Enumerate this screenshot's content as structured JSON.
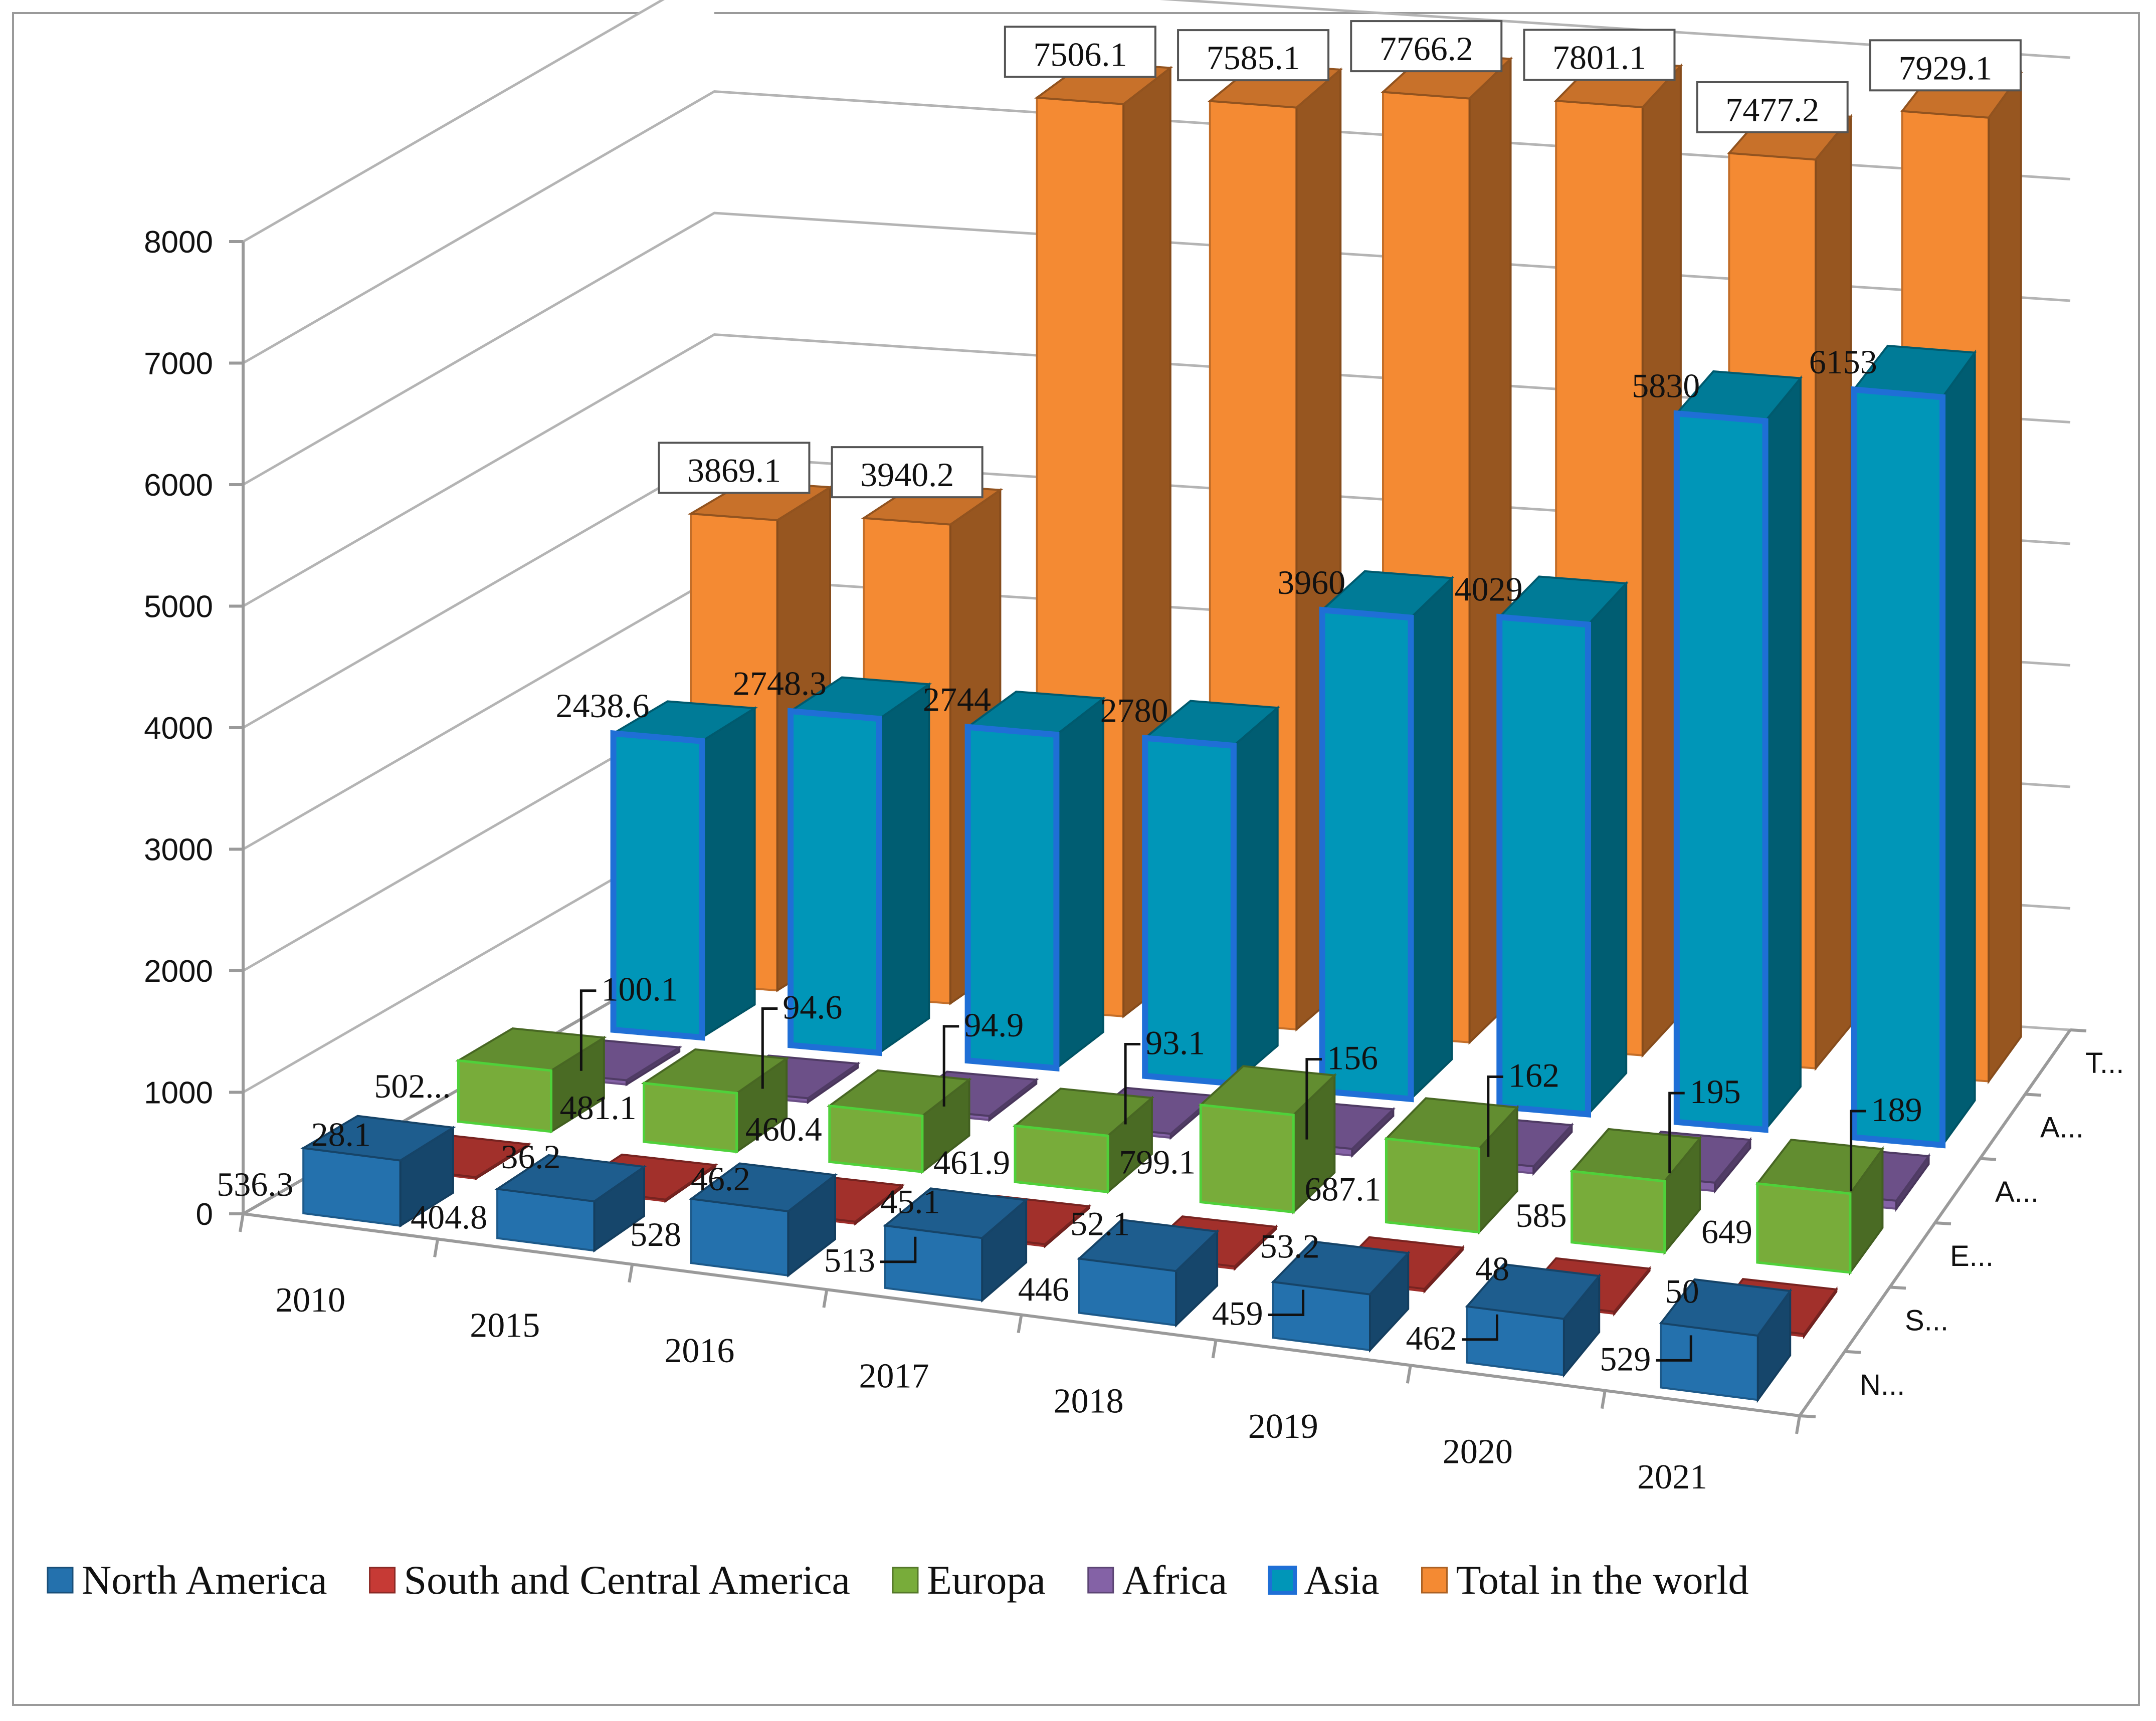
{
  "chart_data": {
    "type": "bar",
    "variant": "3d-clustered-column",
    "title": "",
    "xlabel": "",
    "ylabel": "",
    "ylim": [
      0,
      8000
    ],
    "yticks": [
      0,
      1000,
      2000,
      3000,
      4000,
      5000,
      6000,
      7000,
      8000
    ],
    "grid": true,
    "legend_position": "bottom",
    "categories": [
      "2010",
      "2015",
      "2016",
      "2017",
      "2018",
      "2019",
      "2020",
      "2021"
    ],
    "depth_labels": [
      "N...",
      "S...",
      "E...",
      "A...",
      "A...",
      "T..."
    ],
    "series": [
      {
        "name": "North America",
        "color": "#2471ad",
        "values": [
          536.3,
          404.8,
          528,
          513,
          446,
          459,
          462,
          529
        ],
        "labels": [
          "536.3",
          "404.8",
          "528",
          "513",
          "446",
          "459",
          "462",
          "529"
        ]
      },
      {
        "name": "South and Central America",
        "color": "#c63a35",
        "values": [
          28.1,
          36.2,
          46.2,
          45.1,
          52.1,
          53.2,
          48,
          50
        ],
        "labels": [
          "28.1",
          "36.2",
          "46.2",
          "45.1",
          "52.1",
          "53.2",
          "48",
          "50"
        ]
      },
      {
        "name": "Europa",
        "color": "#78ac3a",
        "values": [
          502,
          481.1,
          460.4,
          461.9,
          799.1,
          687.1,
          585,
          649
        ],
        "labels": [
          "502...",
          "481.1",
          "460.4",
          "461.9",
          "799.1",
          "687.1",
          "585",
          "649"
        ]
      },
      {
        "name": "Africa",
        "color": "#8462a6",
        "values": [
          100.1,
          94.6,
          94.9,
          93.1,
          156,
          162,
          195,
          189
        ],
        "labels": [
          "100.1",
          "94.6",
          "94.9",
          "93.1",
          "156",
          "162",
          "195",
          "189"
        ]
      },
      {
        "name": "Asia",
        "color": "#0096b8",
        "values": [
          2438.6,
          2748.3,
          2744,
          2780,
          3960,
          4029,
          5830,
          6153
        ],
        "labels": [
          "2438.6",
          "2748.3",
          "2744",
          "2780",
          "3960",
          "4029",
          "5830",
          "6153"
        ]
      },
      {
        "name": "Total in the world",
        "color": "#f48a33",
        "values": [
          3869.1,
          3940.2,
          7506.1,
          7585.1,
          7766.2,
          7801.1,
          7477.2,
          7929.1
        ],
        "labels": [
          "3869.1",
          "3940.2",
          "7506.1",
          "7585.1",
          "7766.2",
          "7801.1",
          "7477.2",
          "7929.1"
        ]
      }
    ]
  }
}
